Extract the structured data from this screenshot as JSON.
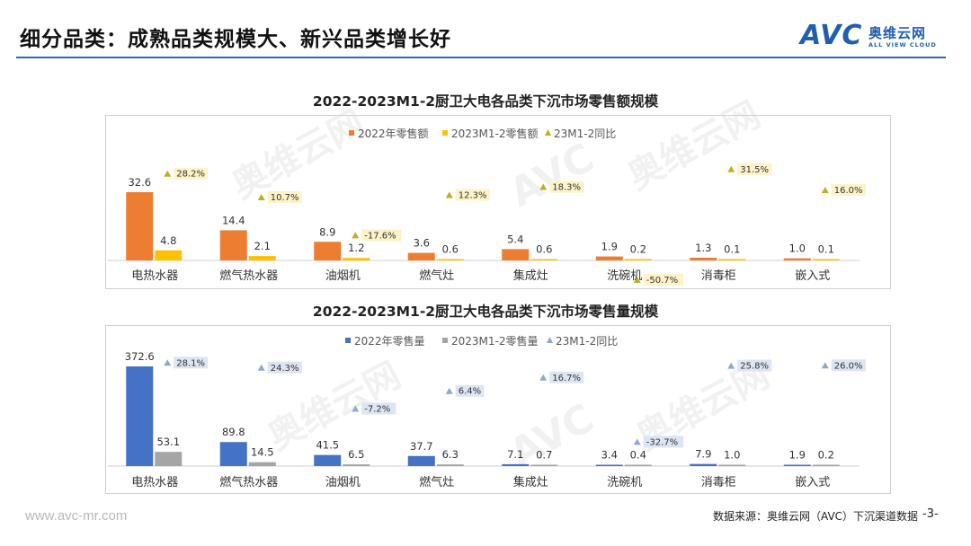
{
  "page": {
    "title": "细分品类：成熟品类规模大、新兴品类增长好",
    "logo_mark": "AVC",
    "logo_cn": "奥维云网",
    "logo_en": "ALL VIEW CLOUD",
    "footer_url": "www.avc-mr.com",
    "footer_source": "数据来源：奥维云网（AVC）下沉渠道数据",
    "page_number": "-3-",
    "watermark_mark": "AVC",
    "watermark_cn": "奥维云网",
    "watermark_en": "ALL VIEW CLOUD"
  },
  "chart_data": [
    {
      "type": "bar",
      "title": "2022-2023M1-2厨卫大电各品类下沉市场零售额规模",
      "categories": [
        "电热水器",
        "燃气热水器",
        "油烟机",
        "燃气灶",
        "集成灶",
        "洗碗机",
        "消毒柜",
        "嵌入式"
      ],
      "series": [
        {
          "name": "2022年零售额",
          "kind": "bar",
          "values": [
            32.6,
            14.4,
            8.9,
            3.6,
            5.4,
            1.9,
            1.3,
            1.0
          ],
          "labels": [
            "32.6",
            "14.4",
            "8.9",
            "3.6",
            "5.4",
            "1.9",
            "1.3",
            "1.0"
          ]
        },
        {
          "name": "2023M1-2零售额",
          "kind": "bar",
          "values": [
            4.8,
            2.1,
            1.2,
            0.6,
            0.6,
            0.2,
            0.1,
            0.1
          ],
          "labels": [
            "4.8",
            "2.1",
            "1.2",
            "0.6",
            "0.6",
            "0.2",
            "0.1",
            "0.1"
          ]
        },
        {
          "name": "23M1-2同比",
          "kind": "marker",
          "values": [
            28.2,
            10.7,
            -17.6,
            12.3,
            18.3,
            -50.7,
            31.5,
            16.0
          ],
          "labels": [
            "28.2%",
            "10.7%",
            "-17.6%",
            "12.3%",
            "18.3%",
            "-50.7%",
            "31.5%",
            "16.0%"
          ]
        }
      ],
      "colors": {
        "bar1": "#ed7d31",
        "bar2": "#ffc000",
        "marker": "#bfb020",
        "label_bg": "#fdf3c8"
      },
      "legend": "top",
      "grid": false
    },
    {
      "type": "bar",
      "title": "2022-2023M1-2厨卫大电各品类下沉市场零售量规模",
      "categories": [
        "电热水器",
        "燃气热水器",
        "油烟机",
        "燃气灶",
        "集成灶",
        "洗碗机",
        "消毒柜",
        "嵌入式"
      ],
      "series": [
        {
          "name": "2022年零售量",
          "kind": "bar",
          "values": [
            372.6,
            89.8,
            41.5,
            37.7,
            7.1,
            3.4,
            7.9,
            1.9
          ],
          "labels": [
            "372.6",
            "89.8",
            "41.5",
            "37.7",
            "7.1",
            "3.4",
            "7.9",
            "1.9"
          ]
        },
        {
          "name": "2023M1-2零售量",
          "kind": "bar",
          "values": [
            53.1,
            14.5,
            6.5,
            6.3,
            0.7,
            0.4,
            1.0,
            0.2
          ],
          "labels": [
            "53.1",
            "14.5",
            "6.5",
            "6.3",
            "0.7",
            "0.4",
            "1.0",
            "0.2"
          ]
        },
        {
          "name": "23M1-2同比",
          "kind": "marker",
          "values": [
            28.1,
            24.3,
            -7.2,
            6.4,
            16.7,
            -32.7,
            25.8,
            26.0
          ],
          "labels": [
            "28.1%",
            "24.3%",
            "-7.2%",
            "6.4%",
            "16.7%",
            "-32.7%",
            "25.8%",
            "26.0%"
          ]
        }
      ],
      "colors": {
        "bar1": "#4472c4",
        "bar2": "#a5a5a5",
        "marker": "#8ea9d1",
        "label_bg": "#dde5f2"
      },
      "legend": "top",
      "grid": false
    }
  ]
}
